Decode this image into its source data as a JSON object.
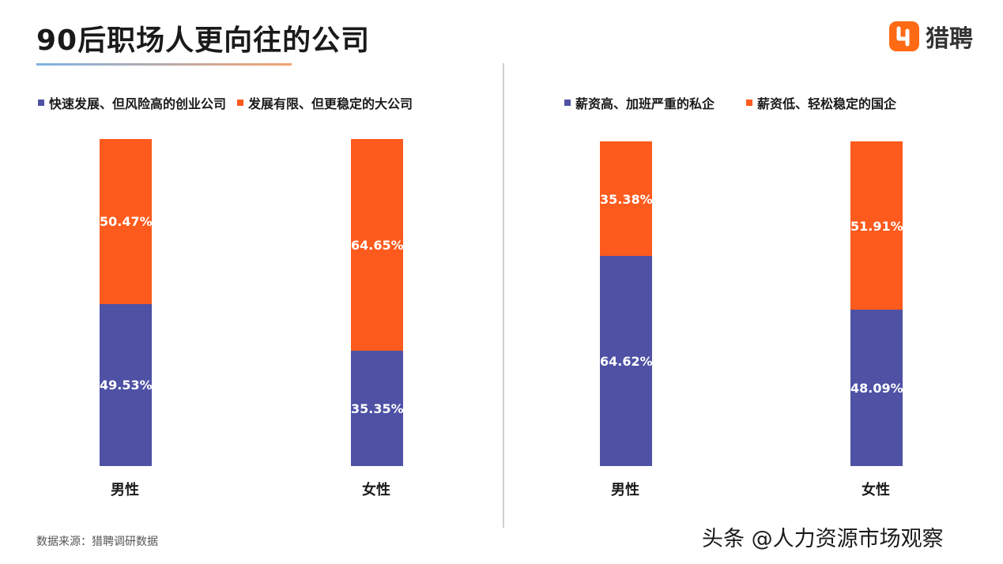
{
  "title": "90后职场人更向往的公司",
  "logo": {
    "text": "猎聘"
  },
  "colors": {
    "blue": "#4e51a4",
    "orange": "#fd5a1d"
  },
  "chart_data": [
    {
      "type": "bar",
      "stacked": true,
      "categories": [
        "男性",
        "女性"
      ],
      "series": [
        {
          "name": "快速发展、但风险高的创业公司",
          "values": [
            49.53,
            35.35
          ],
          "labels": [
            "49.53%",
            "35.35%"
          ],
          "color": "#4e51a4"
        },
        {
          "name": "发展有限、但更稳定的大公司",
          "values": [
            50.47,
            64.65
          ],
          "labels": [
            "50.47%",
            "64.65%"
          ],
          "color": "#fd5a1d"
        }
      ],
      "ylim": [
        0,
        100
      ],
      "legend": "top-left"
    },
    {
      "type": "bar",
      "stacked": true,
      "categories": [
        "男性",
        "女性"
      ],
      "series": [
        {
          "name": "薪资高、加班严重的私企",
          "values": [
            64.62,
            48.09
          ],
          "labels": [
            "64.62%",
            "48.09%"
          ],
          "color": "#4e51a4"
        },
        {
          "name": "薪资低、轻松稳定的国企",
          "values": [
            35.38,
            51.91
          ],
          "labels": [
            "35.38%",
            "51.91%"
          ],
          "color": "#fd5a1d"
        }
      ],
      "ylim": [
        0,
        100
      ],
      "legend": "top-left"
    }
  ],
  "source": "数据来源：猎聘调研数据",
  "watermark": "头条 @人力资源市场观察"
}
